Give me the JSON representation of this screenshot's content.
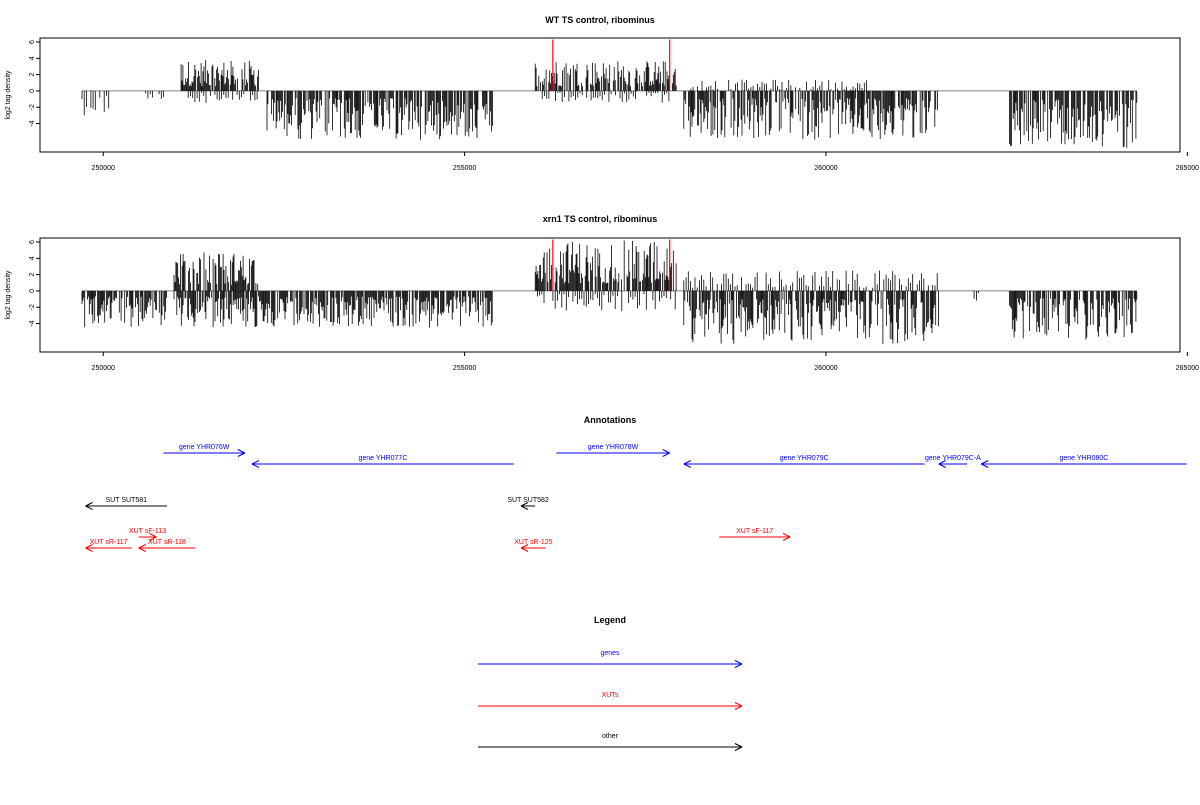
{
  "chart_data": [
    {
      "type": "bar",
      "title": "WT TS control, ribominus",
      "xlabel": "",
      "ylabel": "log2 tag density",
      "xlim": [
        249700,
        265300
      ],
      "ylim": [
        -7,
        6
      ],
      "y_ticks": [
        6,
        4,
        2,
        0,
        -2,
        -4
      ],
      "y_tick_labels": [
        "6",
        "4",
        "2",
        "0",
        "-2",
        "-4"
      ],
      "x_ticks": [
        250000,
        255000,
        260000,
        265000
      ],
      "x_tick_labels": [
        "250000",
        "255000",
        "260000",
        "265000"
      ],
      "baseline": 0,
      "segments": [
        {
          "start": 249700,
          "end": 250100,
          "amp": 3,
          "dir": -1
        },
        {
          "start": 250600,
          "end": 250900,
          "amp": 1,
          "dir": -1
        },
        {
          "start": 251100,
          "end": 252200,
          "amp": 3.8,
          "dir": 1
        },
        {
          "start": 251200,
          "end": 252200,
          "amp": 1.5,
          "dir": -1
        },
        {
          "start": 252300,
          "end": 255500,
          "amp": 6,
          "dir": -1
        },
        {
          "start": 256100,
          "end": 258100,
          "amp": 3.8,
          "dir": 1
        },
        {
          "start": 256200,
          "end": 258000,
          "amp": 1.5,
          "dir": -1
        },
        {
          "start": 258200,
          "end": 261800,
          "amp": 6,
          "dir": -1
        },
        {
          "start": 258300,
          "end": 260800,
          "amp": 1.4,
          "dir": 1
        },
        {
          "start": 262800,
          "end": 264600,
          "amp": 7,
          "dir": -1
        }
      ],
      "markers": [
        256350,
        258000
      ],
      "marker_top": 6.3,
      "marker_bottom": 0
    },
    {
      "type": "bar",
      "title": "xrn1 TS control, ribominus",
      "xlabel": "",
      "ylabel": "log2 tag density",
      "xlim": [
        249700,
        265300
      ],
      "ylim": [
        -7,
        6
      ],
      "y_ticks": [
        6,
        4,
        2,
        0,
        -2,
        -4
      ],
      "y_tick_labels": [
        "6",
        "4",
        "2",
        "0",
        "-2",
        "-4"
      ],
      "x_ticks": [
        250000,
        255000,
        260000,
        265000
      ],
      "x_tick_labels": [
        "250000",
        "255000",
        "260000",
        "265000"
      ],
      "baseline": 0,
      "segments": [
        {
          "start": 249700,
          "end": 250900,
          "amp": 4.5,
          "dir": -1
        },
        {
          "start": 251000,
          "end": 252200,
          "amp": 4.8,
          "dir": 1
        },
        {
          "start": 251000,
          "end": 255500,
          "amp": 4.5,
          "dir": -1
        },
        {
          "start": 256100,
          "end": 258100,
          "amp": 6.2,
          "dir": 1
        },
        {
          "start": 256100,
          "end": 258100,
          "amp": 2.5,
          "dir": -1
        },
        {
          "start": 258200,
          "end": 261800,
          "amp": 2.5,
          "dir": 1
        },
        {
          "start": 258200,
          "end": 261800,
          "amp": 6.5,
          "dir": -1
        },
        {
          "start": 262300,
          "end": 262400,
          "amp": 1.5,
          "dir": -1
        },
        {
          "start": 262800,
          "end": 264600,
          "amp": 6,
          "dir": -1
        }
      ],
      "markers": [
        256350,
        258000
      ],
      "marker_top": 6.3,
      "marker_bottom": 0
    },
    {
      "type": "other",
      "title": "Annotations",
      "xlim": [
        249700,
        265300
      ],
      "features": [
        {
          "label": "gene YHR076W",
          "type": "gene",
          "start": 250850,
          "end": 252000,
          "strand": "+",
          "row": 1
        },
        {
          "label": "gene YHR077C",
          "type": "gene",
          "start": 252100,
          "end": 255800,
          "strand": "-",
          "row": 2
        },
        {
          "label": "gene YHR078W",
          "type": "gene",
          "start": 256400,
          "end": 258000,
          "strand": "+",
          "row": 1
        },
        {
          "label": "gene YHR079C",
          "type": "gene",
          "start": 258200,
          "end": 261600,
          "strand": "-",
          "row": 2
        },
        {
          "label": "gene YHR079C-A",
          "type": "gene",
          "start": 261800,
          "end": 262200,
          "strand": "-",
          "row": 2
        },
        {
          "label": "gene YHR080C",
          "type": "gene",
          "start": 262400,
          "end": 265300,
          "strand": "-",
          "row": 2
        },
        {
          "label": "SUT SUT581",
          "type": "other",
          "start": 249750,
          "end": 250900,
          "strand": "-",
          "row": 3
        },
        {
          "label": "SUT SUT582",
          "type": "other",
          "start": 255900,
          "end": 256100,
          "strand": "-",
          "row": 3
        },
        {
          "label": "XUT sF-113",
          "type": "xut",
          "start": 250500,
          "end": 250750,
          "strand": "+",
          "row": 4
        },
        {
          "label": "XUT sR-117",
          "type": "xut",
          "start": 249750,
          "end": 250400,
          "strand": "-",
          "row": 5
        },
        {
          "label": "XUT sR-118",
          "type": "xut",
          "start": 250500,
          "end": 251300,
          "strand": "-",
          "row": 5
        },
        {
          "label": "XUT sR-125",
          "type": "xut",
          "start": 255900,
          "end": 256250,
          "strand": "-",
          "row": 5
        },
        {
          "label": "XUT sF-117",
          "type": "xut",
          "start": 258700,
          "end": 259700,
          "strand": "+",
          "row": 4
        }
      ]
    },
    {
      "type": "other",
      "title": "Legend",
      "entries": [
        {
          "label": "genes",
          "color": "#0000ff"
        },
        {
          "label": "XUTs",
          "color": "#ff0000"
        },
        {
          "label": "other",
          "color": "#000000"
        }
      ]
    }
  ],
  "colors": {
    "gene": "#0000ff",
    "xut": "#ff0000",
    "other": "#000000",
    "marker": "#ff0000",
    "bar": "#000000",
    "baseline": "#808080"
  }
}
